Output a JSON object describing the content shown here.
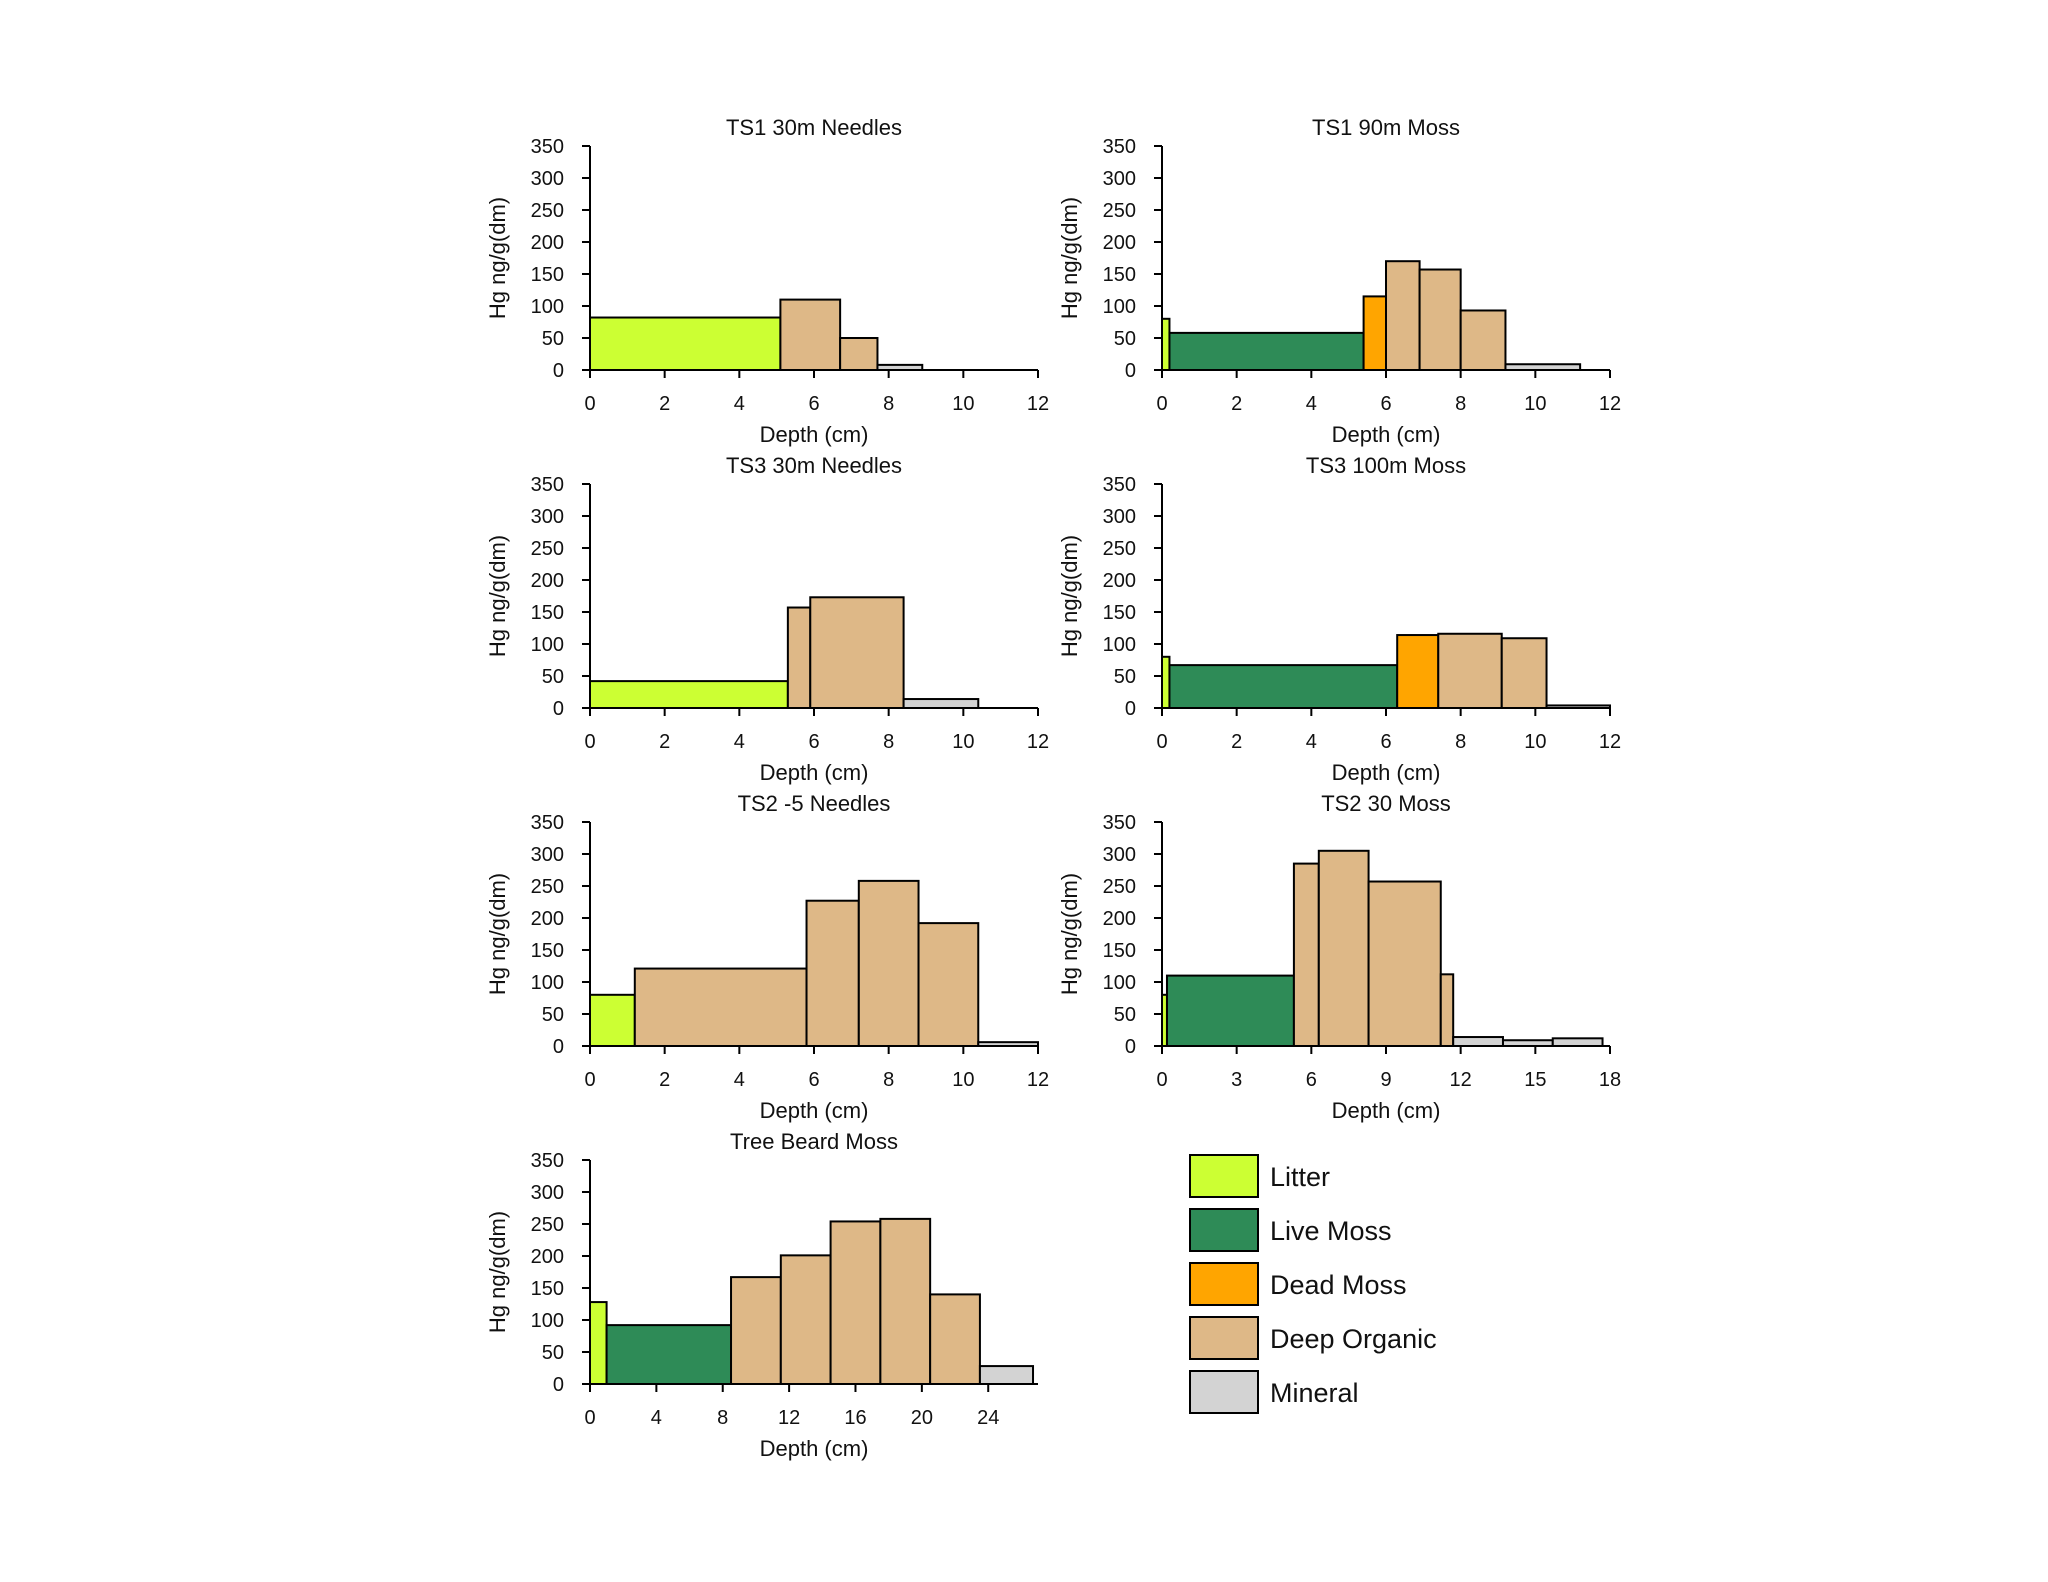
{
  "chart_data": [
    {
      "type": "bar",
      "title": "TS1 30m Needles",
      "xlabel": "Depth (cm)",
      "ylabel": "Hg ng/g(dm)",
      "xlim": [
        0,
        12
      ],
      "ylim": [
        0,
        350
      ],
      "xticks": [
        0,
        2,
        4,
        6,
        8,
        10,
        12
      ],
      "yticks": [
        0,
        50,
        100,
        150,
        200,
        250,
        300,
        350
      ],
      "bars": [
        {
          "start": 0,
          "end": 5.1,
          "value": 82,
          "layer": "Litter"
        },
        {
          "start": 5.1,
          "end": 6.7,
          "value": 110,
          "layer": "Deep Organic"
        },
        {
          "start": 6.7,
          "end": 7.7,
          "value": 50,
          "layer": "Deep Organic"
        },
        {
          "start": 7.7,
          "end": 8.9,
          "value": 8,
          "layer": "Mineral"
        }
      ]
    },
    {
      "type": "bar",
      "title": "TS1 90m Moss",
      "xlabel": "Depth (cm)",
      "ylabel": "Hg ng/g(dm)",
      "xlim": [
        0,
        12
      ],
      "ylim": [
        0,
        350
      ],
      "xticks": [
        0,
        2,
        4,
        6,
        8,
        10,
        12
      ],
      "yticks": [
        0,
        50,
        100,
        150,
        200,
        250,
        300,
        350
      ],
      "bars": [
        {
          "start": 0,
          "end": 0.2,
          "value": 80,
          "layer": "Litter"
        },
        {
          "start": 0.2,
          "end": 5.4,
          "value": 58,
          "layer": "Live Moss"
        },
        {
          "start": 5.4,
          "end": 6.0,
          "value": 115,
          "layer": "Dead Moss"
        },
        {
          "start": 6.0,
          "end": 6.9,
          "value": 170,
          "layer": "Deep Organic"
        },
        {
          "start": 6.9,
          "end": 8.0,
          "value": 157,
          "layer": "Deep Organic"
        },
        {
          "start": 8.0,
          "end": 9.2,
          "value": 93,
          "layer": "Deep Organic"
        },
        {
          "start": 9.2,
          "end": 11.2,
          "value": 9,
          "layer": "Mineral"
        }
      ]
    },
    {
      "type": "bar",
      "title": "TS3 30m Needles",
      "xlabel": "Depth (cm)",
      "ylabel": "Hg ng/g(dm)",
      "xlim": [
        0,
        12
      ],
      "ylim": [
        0,
        350
      ],
      "xticks": [
        0,
        2,
        4,
        6,
        8,
        10,
        12
      ],
      "yticks": [
        0,
        50,
        100,
        150,
        200,
        250,
        300,
        350
      ],
      "bars": [
        {
          "start": 0,
          "end": 5.3,
          "value": 42,
          "layer": "Litter"
        },
        {
          "start": 5.3,
          "end": 5.9,
          "value": 157,
          "layer": "Deep Organic"
        },
        {
          "start": 5.9,
          "end": 8.4,
          "value": 173,
          "layer": "Deep Organic"
        },
        {
          "start": 8.4,
          "end": 10.4,
          "value": 14,
          "layer": "Mineral"
        }
      ]
    },
    {
      "type": "bar",
      "title": "TS3 100m Moss",
      "xlabel": "Depth (cm)",
      "ylabel": "Hg ng/g(dm)",
      "xlim": [
        0,
        12
      ],
      "ylim": [
        0,
        350
      ],
      "xticks": [
        0,
        2,
        4,
        6,
        8,
        10,
        12
      ],
      "yticks": [
        0,
        50,
        100,
        150,
        200,
        250,
        300,
        350
      ],
      "bars": [
        {
          "start": 0,
          "end": 0.2,
          "value": 80,
          "layer": "Litter"
        },
        {
          "start": 0.2,
          "end": 6.3,
          "value": 67,
          "layer": "Live Moss"
        },
        {
          "start": 6.3,
          "end": 7.4,
          "value": 114,
          "layer": "Dead Moss"
        },
        {
          "start": 7.4,
          "end": 9.1,
          "value": 116,
          "layer": "Deep Organic"
        },
        {
          "start": 9.1,
          "end": 10.3,
          "value": 109,
          "layer": "Deep Organic"
        },
        {
          "start": 10.3,
          "end": 12.0,
          "value": 4,
          "layer": "Mineral"
        }
      ]
    },
    {
      "type": "bar",
      "title": "TS2 -5 Needles",
      "xlabel": "Depth (cm)",
      "ylabel": "Hg ng/g(dm)",
      "xlim": [
        0,
        12
      ],
      "ylim": [
        0,
        350
      ],
      "xticks": [
        0,
        2,
        4,
        6,
        8,
        10,
        12
      ],
      "yticks": [
        0,
        50,
        100,
        150,
        200,
        250,
        300,
        350
      ],
      "bars": [
        {
          "start": 0,
          "end": 1.2,
          "value": 80,
          "layer": "Litter"
        },
        {
          "start": 1.2,
          "end": 5.8,
          "value": 121,
          "layer": "Deep Organic"
        },
        {
          "start": 5.8,
          "end": 7.2,
          "value": 227,
          "layer": "Deep Organic"
        },
        {
          "start": 7.2,
          "end": 8.8,
          "value": 258,
          "layer": "Deep Organic"
        },
        {
          "start": 8.8,
          "end": 10.4,
          "value": 192,
          "layer": "Deep Organic"
        },
        {
          "start": 10.4,
          "end": 12.0,
          "value": 6,
          "layer": "Mineral"
        }
      ]
    },
    {
      "type": "bar",
      "title": "TS2 30 Moss",
      "xlabel": "Depth (cm)",
      "ylabel": "Hg ng/g(dm)",
      "xlim": [
        0,
        18
      ],
      "ylim": [
        0,
        350
      ],
      "xticks": [
        0,
        3,
        6,
        9,
        12,
        15,
        18
      ],
      "yticks": [
        0,
        50,
        100,
        150,
        200,
        250,
        300,
        350
      ],
      "bars": [
        {
          "start": 0,
          "end": 0.2,
          "value": 80,
          "layer": "Litter"
        },
        {
          "start": 0.2,
          "end": 5.3,
          "value": 110,
          "layer": "Live Moss"
        },
        {
          "start": 5.3,
          "end": 6.3,
          "value": 285,
          "layer": "Deep Organic"
        },
        {
          "start": 6.3,
          "end": 8.3,
          "value": 305,
          "layer": "Deep Organic"
        },
        {
          "start": 8.3,
          "end": 11.2,
          "value": 257,
          "layer": "Deep Organic"
        },
        {
          "start": 11.2,
          "end": 11.7,
          "value": 112,
          "layer": "Deep Organic"
        },
        {
          "start": 11.7,
          "end": 13.7,
          "value": 14,
          "layer": "Mineral"
        },
        {
          "start": 13.7,
          "end": 15.7,
          "value": 9,
          "layer": "Mineral"
        },
        {
          "start": 15.7,
          "end": 17.7,
          "value": 12,
          "layer": "Mineral"
        }
      ]
    },
    {
      "type": "bar",
      "title": "Tree Beard Moss",
      "xlabel": "Depth (cm)",
      "ylabel": "Hg ng/g(dm)",
      "xlim": [
        0,
        27
      ],
      "ylim": [
        0,
        350
      ],
      "xticks": [
        0,
        4,
        8,
        12,
        16,
        20,
        24
      ],
      "yticks": [
        0,
        50,
        100,
        150,
        200,
        250,
        300,
        350
      ],
      "bars": [
        {
          "start": 0,
          "end": 1.0,
          "value": 128,
          "layer": "Litter"
        },
        {
          "start": 1.0,
          "end": 8.5,
          "value": 92,
          "layer": "Live Moss"
        },
        {
          "start": 8.5,
          "end": 11.5,
          "value": 167,
          "layer": "Deep Organic"
        },
        {
          "start": 11.5,
          "end": 14.5,
          "value": 201,
          "layer": "Deep Organic"
        },
        {
          "start": 14.5,
          "end": 17.5,
          "value": 254,
          "layer": "Deep Organic"
        },
        {
          "start": 17.5,
          "end": 20.5,
          "value": 258,
          "layer": "Deep Organic"
        },
        {
          "start": 20.5,
          "end": 23.5,
          "value": 140,
          "layer": "Deep Organic"
        },
        {
          "start": 23.5,
          "end": 26.7,
          "value": 28,
          "layer": "Mineral"
        }
      ]
    }
  ],
  "legend": {
    "items": [
      {
        "label": "Litter",
        "color": "#ccff33"
      },
      {
        "label": "Live Moss",
        "color": "#2e8b57"
      },
      {
        "label": "Dead Moss",
        "color": "#ffa500"
      },
      {
        "label": "Deep Organic",
        "color": "#deb887"
      },
      {
        "label": "Mineral",
        "color": "#d3d3d3"
      }
    ]
  }
}
